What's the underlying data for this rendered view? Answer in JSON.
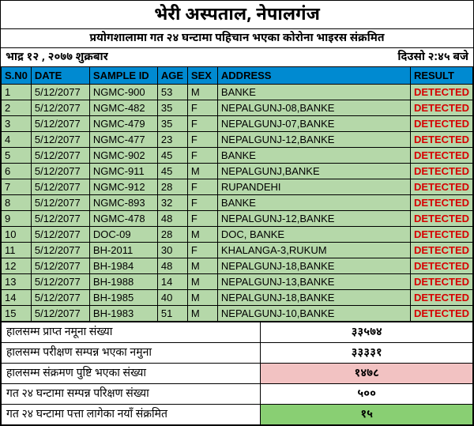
{
  "header": {
    "title": "भेरी अस्पताल, नेपालगंज",
    "subtitle": "प्रयोगशालामा गत २४ घन्टामा पहिचान भएका कोरोना भाइरस संक्रमित",
    "date_left": "भाद्र १२ , २०७७  शुक्रबार",
    "date_right": "दिउसो  २:४५  बजे"
  },
  "table": {
    "columns": [
      "S.N0",
      "DATE",
      "SAMPLE ID",
      "AGE",
      "SEX",
      "ADDRESS",
      "RESULT"
    ],
    "col_widths": [
      "34px",
      "74px",
      "86px",
      "38px",
      "38px",
      "",
      "74px"
    ],
    "header_bg": "#008ad1",
    "row_bg": "#b5d8a9",
    "result_color": "#d60000",
    "rows": [
      [
        "1",
        "5/12/2077",
        "NGMC-900",
        "53",
        "M",
        " BANKE",
        "DETECTED"
      ],
      [
        "2",
        "5/12/2077",
        "NGMC-482",
        "35",
        "F",
        "NEPALGUNJ-08,BANKE",
        "DETECTED"
      ],
      [
        "3",
        "5/12/2077",
        "NGMC-479",
        "35",
        "F",
        "NEPALGUNJ-07,BANKE",
        "DETECTED"
      ],
      [
        "4",
        "5/12/2077",
        "NGMC-477",
        "23",
        "F",
        "NEPALGUNJ-12,BANKE",
        "DETECTED"
      ],
      [
        "5",
        "5/12/2077",
        "NGMC-902",
        "45",
        "F",
        "BANKE",
        "DETECTED"
      ],
      [
        "6",
        "5/12/2077",
        "NGMC-911",
        "45",
        "M",
        "NEPALGUNJ,BANKE",
        "DETECTED"
      ],
      [
        "7",
        "5/12/2077",
        "NGMC-912",
        "28",
        "F",
        "RUPANDEHI",
        "DETECTED"
      ],
      [
        "8",
        "5/12/2077",
        "NGMC-893",
        "32",
        "F",
        "BANKE",
        "DETECTED"
      ],
      [
        "9",
        "5/12/2077",
        "NGMC-478",
        "48",
        "F",
        "NEPALGUNJ-12,BANKE",
        "DETECTED"
      ],
      [
        "10",
        "5/12/2077",
        "DOC-09",
        "28",
        "M",
        "DOC, BANKE",
        "DETECTED"
      ],
      [
        "11",
        "5/12/2077",
        "BH-2011",
        "30",
        "F",
        "KHALANGA-3,RUKUM",
        "DETECTED"
      ],
      [
        "12",
        "5/12/2077",
        "BH-1984",
        "48",
        "M",
        "NEPALGUNJ-18,BANKE",
        "DETECTED"
      ],
      [
        "13",
        "5/12/2077",
        "BH-1988",
        "14",
        "M",
        "NEPALGUNJ-13,BANKE",
        "DETECTED"
      ],
      [
        "14",
        "5/12/2077",
        "BH-1985",
        "40",
        "M",
        "NEPALGUNJ-18,BANKE",
        "DETECTED"
      ],
      [
        "15",
        "5/12/2077",
        "BH-1983",
        "51",
        "M",
        "NEPALGUNJ-10,BANKE",
        "DETECTED"
      ]
    ]
  },
  "summary": {
    "rows": [
      {
        "label": "हालसम्म प्राप्त नमूना संख्या",
        "value": "३३५७४",
        "hl": ""
      },
      {
        "label": "हालसम्म परीक्षण सम्पन्न भएका नमुना",
        "value": "३३३३१",
        "hl": ""
      },
      {
        "label": "हालसम्म संक्रमण पुष्टि भएका संख्या",
        "value": "१४७८",
        "hl": "hl-pink"
      },
      {
        "label": "गत २४ घन्टामा सम्पन्न परिक्षण संख्या",
        "value": "५००",
        "hl": ""
      },
      {
        "label": "गत २४ घन्टामा पत्ता लागेका नयाँ संक्रमित",
        "value": "१५",
        "hl": "hl-green"
      }
    ],
    "pink_bg": "#f2c2c2",
    "green_bg": "#89cf73"
  }
}
